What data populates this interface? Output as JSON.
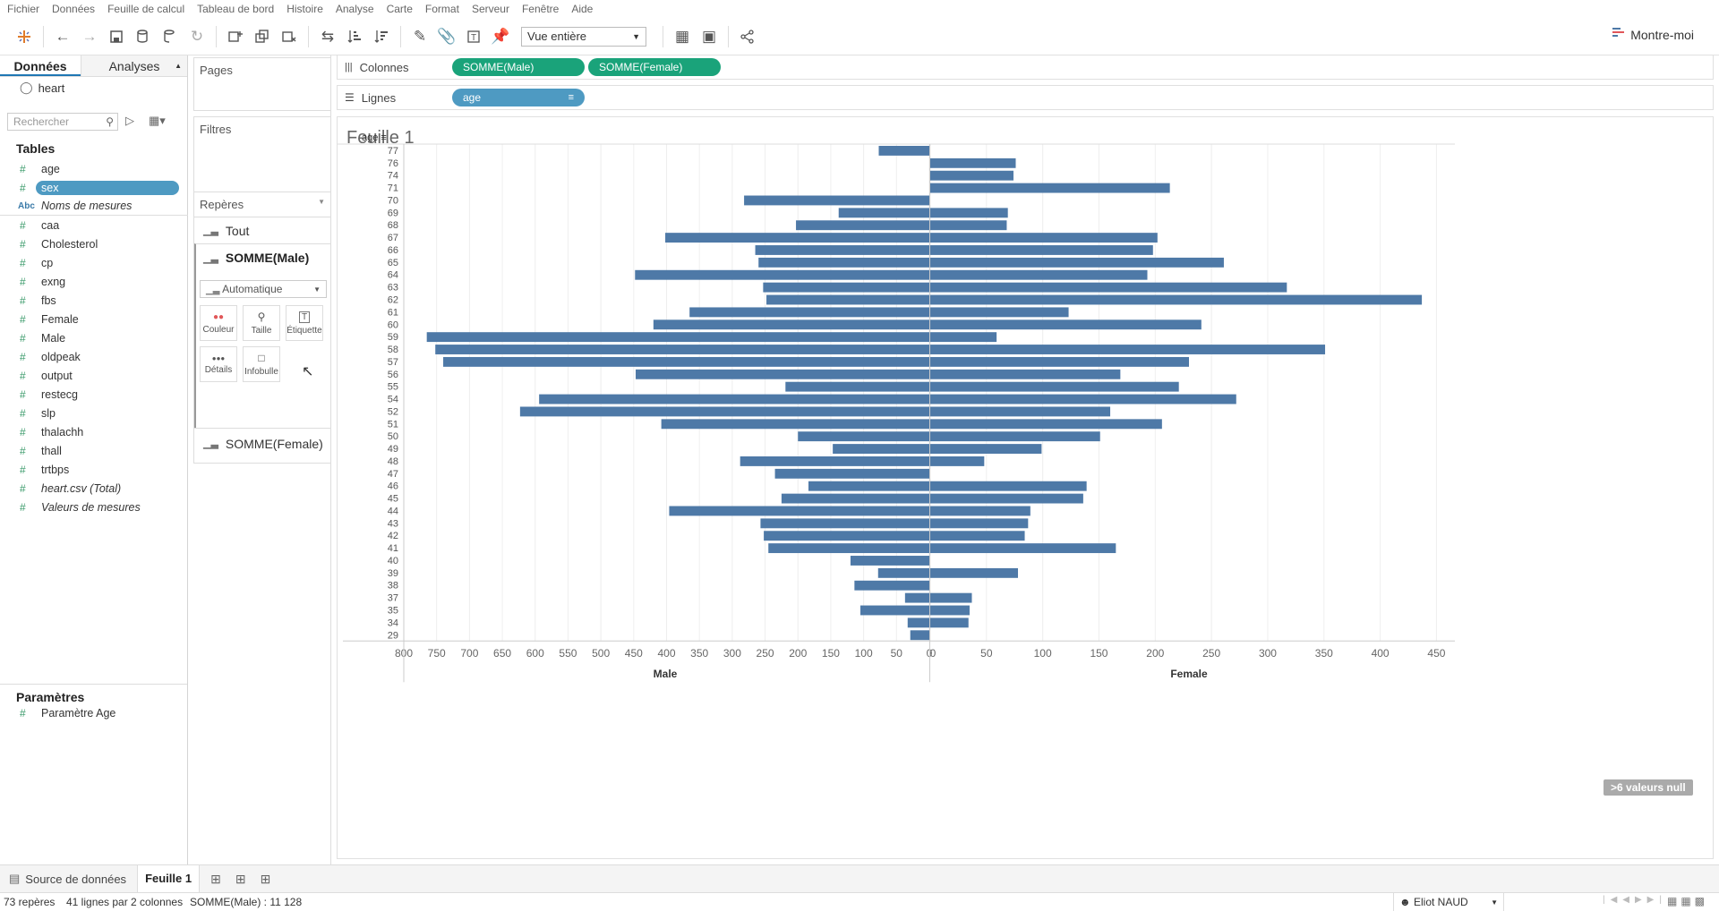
{
  "menu": [
    "Fichier",
    "Données",
    "Feuille de calcul",
    "Tableau de bord",
    "Histoire",
    "Analyse",
    "Carte",
    "Format",
    "Serveur",
    "Fenêtre",
    "Aide"
  ],
  "toolbar": {
    "view_select": "Vue entière",
    "show_me": "Montre-moi"
  },
  "data_pane": {
    "tab_data": "Données",
    "tab_analytics": "Analyses",
    "source": "heart",
    "search_placeholder": "Rechercher",
    "tables_heading": "Tables",
    "fields": [
      {
        "name": "age",
        "type": "#"
      },
      {
        "name": "sex",
        "type": "#"
      },
      {
        "name": "Noms de mesures",
        "type": "Abc"
      },
      {
        "name": "caa",
        "type": "#"
      },
      {
        "name": "Cholesterol",
        "type": "#"
      },
      {
        "name": "cp",
        "type": "#"
      },
      {
        "name": "exng",
        "type": "#"
      },
      {
        "name": "fbs",
        "type": "#"
      },
      {
        "name": "Female",
        "type": "#"
      },
      {
        "name": "Male",
        "type": "#"
      },
      {
        "name": "oldpeak",
        "type": "#"
      },
      {
        "name": "output",
        "type": "#"
      },
      {
        "name": "restecg",
        "type": "#"
      },
      {
        "name": "slp",
        "type": "#"
      },
      {
        "name": "thalachh",
        "type": "#"
      },
      {
        "name": "thall",
        "type": "#"
      },
      {
        "name": "trtbps",
        "type": "#"
      },
      {
        "name": "heart.csv (Total)",
        "type": "#"
      },
      {
        "name": "Valeurs de mesures",
        "type": "#"
      }
    ],
    "params_heading": "Paramètres",
    "param": "Paramètre Age"
  },
  "cards": {
    "pages": "Pages",
    "filters": "Filtres",
    "marks": "Repères",
    "marks_all": "Tout",
    "marks_male": "SOMME(Male)",
    "mark_type": "Automatique",
    "btn_color": "Couleur",
    "btn_size": "Taille",
    "btn_label": "Étiquette",
    "btn_detail": "Détails",
    "btn_tooltip": "Infobulle",
    "marks_female": "SOMME(Female)"
  },
  "shelves": {
    "columns_label": "Colonnes",
    "rows_label": "Lignes",
    "col_pill_1": "SOMME(Male)",
    "col_pill_2": "SOMME(Female)",
    "row_pill": "age"
  },
  "sheet": {
    "title": "Feuille 1",
    "null_badge": ">6 valeurs null"
  },
  "chart_data": {
    "type": "bar",
    "orientation": "horizontal-diverging",
    "row_field": "age",
    "categories": [
      77,
      76,
      74,
      71,
      70,
      69,
      68,
      67,
      66,
      65,
      64,
      63,
      62,
      61,
      60,
      59,
      58,
      57,
      56,
      55,
      54,
      52,
      51,
      50,
      49,
      48,
      47,
      46,
      45,
      44,
      43,
      42,
      41,
      40,
      39,
      38,
      37,
      35,
      34,
      29
    ],
    "series": [
      {
        "name": "Male",
        "values": [
          77,
          0,
          0,
          0,
          282,
          138,
          203,
          402,
          265,
          260,
          448,
          253,
          248,
          365,
          420,
          765,
          752,
          740,
          447,
          219,
          594,
          623,
          408,
          200,
          147,
          288,
          235,
          184,
          225,
          396,
          257,
          252,
          245,
          120,
          78,
          114,
          37,
          105,
          33,
          29
        ],
        "xlim": [
          0,
          800
        ],
        "xlabel": "Male"
      },
      {
        "name": "Female",
        "values": [
          0,
          76,
          74,
          213,
          0,
          69,
          68,
          202,
          198,
          261,
          193,
          317,
          437,
          123,
          241,
          59,
          351,
          230,
          169,
          221,
          272,
          160,
          206,
          151,
          99,
          48,
          0,
          139,
          136,
          89,
          87,
          84,
          165,
          0,
          78,
          0,
          37,
          35,
          34,
          0
        ],
        "xlim": [
          0,
          460
        ],
        "xlabel": "Female"
      }
    ],
    "male_ticks": [
      800,
      750,
      700,
      650,
      600,
      550,
      500,
      450,
      400,
      350,
      300,
      250,
      200,
      150,
      100,
      50,
      0
    ],
    "female_ticks": [
      0,
      50,
      100,
      150,
      200,
      250,
      300,
      350,
      400,
      450
    ],
    "bar_color": "#4e79a7",
    "grid": true
  },
  "sheet_tabs": {
    "source": "Source de données",
    "active": "Feuille 1"
  },
  "status": {
    "marks": "73 repères",
    "rows": "41 lignes par 2 colonnes",
    "sum": "SOMME(Male) : 11 128",
    "user": "Eliot NAUD"
  }
}
